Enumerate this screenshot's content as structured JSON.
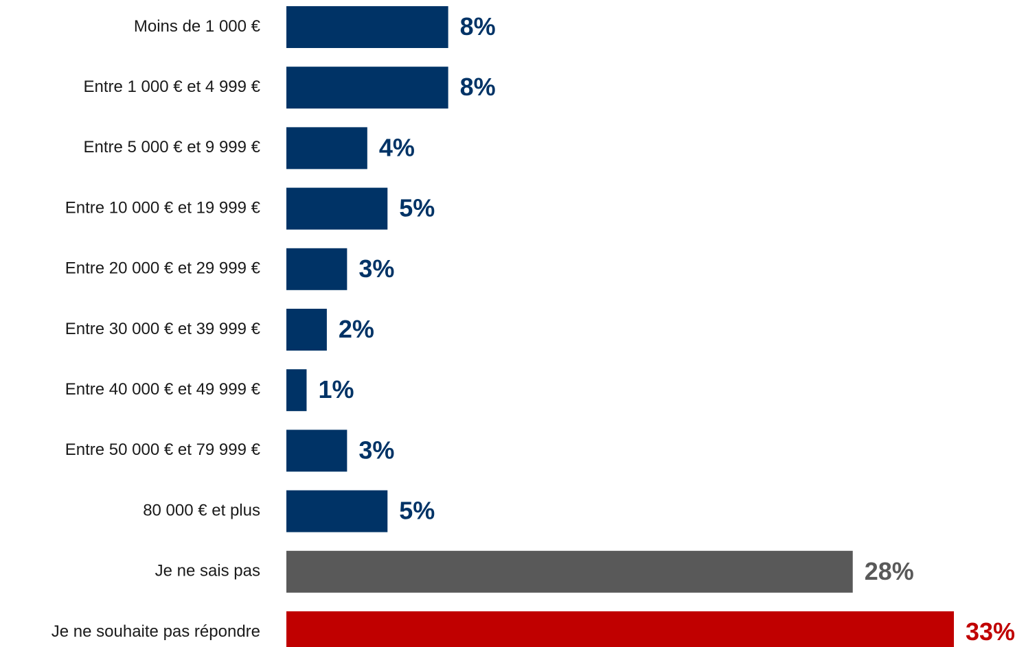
{
  "chart_data": {
    "type": "bar",
    "orientation": "horizontal",
    "categories": [
      "Moins de 1 000 €",
      "Entre 1 000 € et 4 999 €",
      "Entre 5 000 € et 9 999 €",
      "Entre 10 000 € et 19 999 €",
      "Entre 20 000 € et 29 999 €",
      "Entre 30 000 € et 39 999 €",
      "Entre 40 000 € et 49 999 €",
      "Entre 50 000 € et 79 999 €",
      "80 000 € et plus",
      "Je ne sais pas",
      "Je ne souhaite pas répondre"
    ],
    "values": [
      8,
      8,
      4,
      5,
      3,
      2,
      1,
      3,
      5,
      28,
      33
    ],
    "value_labels": [
      "8%",
      "8%",
      "4%",
      "5%",
      "3%",
      "2%",
      "1%",
      "3%",
      "5%",
      "28%",
      "33%"
    ],
    "colors": [
      "#003366",
      "#003366",
      "#003366",
      "#003366",
      "#003366",
      "#003366",
      "#003366",
      "#003366",
      "#003366",
      "#595959",
      "#c00000"
    ]
  }
}
